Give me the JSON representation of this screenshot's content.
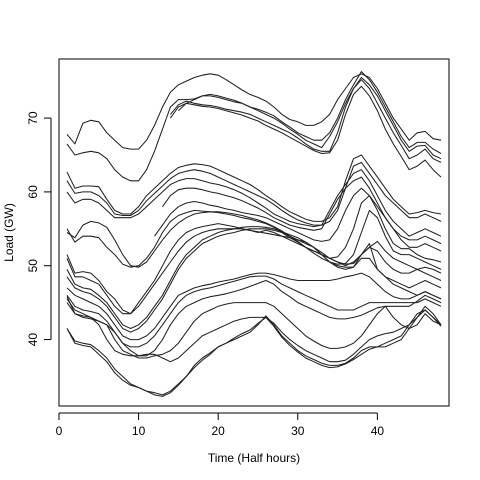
{
  "chart_data": {
    "type": "line",
    "xlabel": "Time (Half hours)",
    "ylabel": "Load (GW)",
    "xlim": [
      0,
      49
    ],
    "ylim": [
      31,
      78
    ],
    "xticks": [
      0,
      10,
      20,
      30,
      40
    ],
    "yticks": [
      40,
      50,
      60,
      70
    ],
    "grid": false,
    "x": [
      1,
      2,
      3,
      4,
      5,
      6,
      7,
      8,
      9,
      10,
      11,
      12,
      13,
      14,
      15,
      16,
      17,
      18,
      19,
      20,
      21,
      22,
      23,
      24,
      25,
      26,
      27,
      28,
      29,
      30,
      31,
      32,
      33,
      34,
      35,
      36,
      37,
      38,
      39,
      40,
      41,
      42,
      43,
      44,
      45,
      46,
      47,
      48
    ],
    "series": [
      {
        "values": [
          67.8,
          66.5,
          69.3,
          69.7,
          69.5,
          68.0,
          67.0,
          66.0,
          65.8,
          65.8,
          67.0,
          69.0,
          71.5,
          73.5,
          74.5,
          75.0,
          75.5,
          75.8,
          76.0,
          75.8,
          75.2,
          74.5,
          73.8,
          73.2,
          72.8,
          72.3,
          71.5,
          70.5,
          69.8,
          69.5,
          69.0,
          69.0,
          69.5,
          70.5,
          72.5,
          74.0,
          75.5,
          76.0,
          75.5,
          74.0,
          72.0,
          70.0,
          68.5,
          67.0,
          68.0,
          68.2,
          67.2,
          67.0
        ]
      },
      {
        "values": [
          66.5,
          65.0,
          65.3,
          65.5,
          65.3,
          64.5,
          63.0,
          62.0,
          61.5,
          61.5,
          63.0,
          65.5,
          68.5,
          71.5,
          72.5,
          72.5,
          72.6,
          73.0,
          73.0,
          72.8,
          72.5,
          72.2,
          72.0,
          71.5,
          71.2,
          70.8,
          70.3,
          69.5,
          68.8,
          68.0,
          67.5,
          67.0,
          67.0,
          68.0,
          70.0,
          72.5,
          74.5,
          76.3,
          75.2,
          73.5,
          71.5,
          69.5,
          67.5,
          66.0,
          66.7,
          66.7,
          65.8,
          65.2
        ]
      },
      {
        "values": [
          null,
          null,
          null,
          null,
          null,
          null,
          null,
          null,
          null,
          null,
          null,
          null,
          null,
          null,
          71.0,
          72.0,
          72.5,
          73.0,
          73.2,
          73.0,
          72.7,
          72.4,
          72.0,
          71.5,
          71.0,
          70.5,
          70.0,
          69.3,
          68.5,
          67.8,
          67.0,
          66.5,
          66.0,
          67.5,
          69.5,
          72.0,
          74.0,
          75.5,
          74.5,
          73.0,
          71.0,
          69.0,
          67.0,
          65.5,
          66.2,
          66.3,
          65.0,
          64.5
        ]
      },
      {
        "values": [
          null,
          null,
          null,
          null,
          null,
          null,
          null,
          null,
          null,
          null,
          null,
          null,
          null,
          70.5,
          71.8,
          72.3,
          72.0,
          71.8,
          71.7,
          71.5,
          71.2,
          71.0,
          70.8,
          70.5,
          70.0,
          69.5,
          69.0,
          68.5,
          68.0,
          67.3,
          66.5,
          65.8,
          65.5,
          65.5,
          68.0,
          71.5,
          74.0,
          75.2,
          74.0,
          72.0,
          70.0,
          68.0,
          66.3,
          64.5,
          65.0,
          65.8,
          64.5,
          64.0
        ]
      },
      {
        "values": [
          null,
          null,
          null,
          null,
          null,
          null,
          null,
          null,
          null,
          null,
          null,
          null,
          null,
          70.0,
          71.5,
          72.0,
          71.8,
          71.6,
          71.5,
          71.3,
          71.0,
          70.7,
          70.4,
          70.0,
          69.6,
          69.0,
          68.5,
          68.0,
          67.4,
          66.8,
          66.2,
          65.6,
          65.2,
          65.3,
          67.0,
          70.5,
          73.2,
          74.3,
          73.0,
          71.0,
          68.5,
          66.5,
          64.8,
          63.0,
          63.5,
          64.3,
          63.0,
          62.0
        ]
      },
      {
        "values": [
          62.7,
          60.5,
          60.8,
          60.8,
          60.7,
          59.0,
          57.5,
          57.0,
          57.0,
          58.0,
          59.5,
          60.5,
          61.5,
          62.5,
          63.3,
          63.6,
          63.8,
          63.7,
          63.5,
          63.0,
          62.5,
          62.0,
          61.5,
          61.0,
          60.3,
          59.5,
          58.8,
          58.0,
          57.3,
          56.8,
          56.3,
          56.0,
          56.0,
          56.5,
          58.0,
          61.5,
          64.5,
          65.0,
          63.5,
          62.0,
          60.5,
          59.0,
          58.0,
          57.0,
          57.2,
          57.5,
          57.2,
          57.0
        ]
      },
      {
        "values": [
          61.5,
          59.8,
          60.0,
          60.0,
          59.5,
          58.5,
          57.0,
          56.8,
          56.8,
          57.5,
          58.8,
          59.8,
          60.8,
          61.8,
          62.5,
          62.8,
          63.0,
          62.8,
          62.5,
          62.0,
          61.5,
          61.0,
          60.5,
          60.0,
          59.5,
          59.0,
          58.3,
          57.5,
          56.8,
          56.2,
          55.8,
          55.5,
          55.5,
          56.0,
          57.5,
          60.5,
          63.5,
          64.0,
          62.5,
          61.0,
          59.5,
          58.5,
          57.5,
          56.5,
          56.5,
          57.0,
          56.5,
          56.0
        ]
      },
      {
        "values": [
          60.0,
          58.5,
          59.0,
          59.0,
          58.5,
          57.5,
          56.5,
          56.5,
          56.5,
          57.0,
          58.0,
          59.0,
          60.0,
          61.0,
          61.5,
          61.8,
          61.8,
          61.5,
          61.2,
          61.0,
          60.7,
          60.3,
          59.8,
          59.2,
          58.5,
          57.8,
          57.0,
          56.5,
          56.0,
          55.7,
          55.5,
          55.3,
          55.5,
          57.5,
          59.5,
          61.0,
          62.5,
          63.0,
          61.5,
          59.5,
          57.5,
          56.0,
          55.0,
          54.0,
          54.5,
          55.0,
          54.5,
          54.0
        ]
      },
      {
        "values": [
          null,
          null,
          null,
          null,
          null,
          null,
          null,
          null,
          null,
          null,
          null,
          null,
          58.0,
          59.5,
          60.3,
          60.5,
          60.5,
          60.3,
          60.0,
          59.8,
          59.5,
          59.2,
          58.8,
          58.3,
          57.8,
          57.2,
          56.5,
          56.0,
          55.5,
          55.2,
          55.0,
          54.8,
          55.0,
          57.0,
          59.0,
          60.5,
          61.5,
          62.0,
          60.5,
          58.5,
          56.5,
          55.0,
          54.0,
          53.5,
          53.5,
          54.0,
          53.5,
          53.0
        ]
      },
      {
        "values": [
          null,
          null,
          null,
          null,
          null,
          null,
          null,
          null,
          null,
          null,
          null,
          54.0,
          55.5,
          57.0,
          58.0,
          58.5,
          58.7,
          58.5,
          58.2,
          58.0,
          57.7,
          57.5,
          57.2,
          57.0,
          56.8,
          56.5,
          56.0,
          55.5,
          55.0,
          54.5,
          54.0,
          53.5,
          53.3,
          53.5,
          55.0,
          57.5,
          59.5,
          60.5,
          59.5,
          58.0,
          56.5,
          55.0,
          53.5,
          52.5,
          52.5,
          53.0,
          52.5,
          52.0
        ]
      },
      {
        "values": [
          55.0,
          53.2,
          54.0,
          54.0,
          53.8,
          52.5,
          51.5,
          50.2,
          49.8,
          50.0,
          51.0,
          52.5,
          54.5,
          56.0,
          56.8,
          57.2,
          57.5,
          57.4,
          57.3,
          57.2,
          57.0,
          56.8,
          56.5,
          56.3,
          56.0,
          55.7,
          55.2,
          54.5,
          53.8,
          53.2,
          52.5,
          52.0,
          51.5,
          51.0,
          51.2,
          52.5,
          55.0,
          58.5,
          59.5,
          57.5,
          55.0,
          53.0,
          52.3,
          52.3,
          51.5,
          51.0,
          50.8,
          50.5
        ]
      },
      {
        "values": [
          54.5,
          53.8,
          55.5,
          56.0,
          55.8,
          55.2,
          53.5,
          51.5,
          50.0,
          49.8,
          50.5,
          52.0,
          53.5,
          54.8,
          55.8,
          56.5,
          57.0,
          57.2,
          57.3,
          57.3,
          57.2,
          57.0,
          56.8,
          56.5,
          56.2,
          55.8,
          55.3,
          54.7,
          54.0,
          53.3,
          52.5,
          51.7,
          51.0,
          50.5,
          50.2,
          50.3,
          51.5,
          54.5,
          57.5,
          56.5,
          54.0,
          52.0,
          51.5,
          51.5,
          51.0,
          50.5,
          50.0,
          49.5
        ]
      },
      {
        "values": [
          51.5,
          49.0,
          49.2,
          49.0,
          48.0,
          46.5,
          45.5,
          44.0,
          43.5,
          44.5,
          46.0,
          47.5,
          49.0,
          50.5,
          52.0,
          53.2,
          54.0,
          54.5,
          54.8,
          55.0,
          55.0,
          55.0,
          55.0,
          54.8,
          54.6,
          54.4,
          54.2,
          54.0,
          53.8,
          53.5,
          53.2,
          52.5,
          51.8,
          51.0,
          50.5,
          50.2,
          50.3,
          51.5,
          52.5,
          53.3,
          52.0,
          51.0,
          50.5,
          50.0,
          49.5,
          49.0,
          48.5,
          48.0
        ]
      },
      {
        "values": [
          51.0,
          48.5,
          48.5,
          48.0,
          47.5,
          46.0,
          44.5,
          43.5,
          43.5,
          45.0,
          46.5,
          48.0,
          50.0,
          52.0,
          53.5,
          54.5,
          55.0,
          55.3,
          55.5,
          55.7,
          55.5,
          55.3,
          55.0,
          54.8,
          54.5,
          54.8,
          54.5,
          54.0,
          53.5,
          53.0,
          52.5,
          52.0,
          51.5,
          51.0,
          50.5,
          50.0,
          50.5,
          51.5,
          53.0,
          49.5,
          48.5,
          48.0,
          47.5,
          47.0,
          47.5,
          48.0,
          47.5,
          47.0
        ]
      },
      {
        "values": [
          49.5,
          47.5,
          47.0,
          46.8,
          46.0,
          45.0,
          43.5,
          42.0,
          41.5,
          42.0,
          43.0,
          44.5,
          46.0,
          48.0,
          50.0,
          51.5,
          52.5,
          53.5,
          54.0,
          54.5,
          54.8,
          55.0,
          55.2,
          55.3,
          55.3,
          55.2,
          55.0,
          54.6,
          54.2,
          53.8,
          53.2,
          52.5,
          51.5,
          50.5,
          49.8,
          49.5,
          49.8,
          51.5,
          52.5,
          52.0,
          50.5,
          49.5,
          49.0,
          49.0,
          49.5,
          49.8,
          49.5,
          49.0
        ]
      },
      {
        "values": [
          48.5,
          47.0,
          46.5,
          46.2,
          45.5,
          44.5,
          43.0,
          41.5,
          41.0,
          41.5,
          42.5,
          44.0,
          45.5,
          47.5,
          49.5,
          51.0,
          52.0,
          53.0,
          53.5,
          54.0,
          54.3,
          54.5,
          54.8,
          55.0,
          55.0,
          55.0,
          54.8,
          54.5,
          54.0,
          53.5,
          53.0,
          52.5,
          51.5,
          50.5,
          50.0,
          49.8,
          49.8,
          51.0,
          51.0,
          49.5,
          48.5,
          47.5,
          47.0,
          46.5,
          46.0,
          46.5,
          46.0,
          45.5
        ]
      },
      {
        "values": [
          47.0,
          46.0,
          45.5,
          45.0,
          44.5,
          43.5,
          42.0,
          40.5,
          40.0,
          40.0,
          40.5,
          41.5,
          43.0,
          44.5,
          46.0,
          46.5,
          47.0,
          47.3,
          47.5,
          47.8,
          48.0,
          48.2,
          48.5,
          48.8,
          49.0,
          49.0,
          48.8,
          48.5,
          48.2,
          48.0,
          48.0,
          48.0,
          48.0,
          48.0,
          48.2,
          48.5,
          48.7,
          49.0,
          48.5,
          47.5,
          46.5,
          45.8,
          45.5,
          45.5,
          46.0,
          46.5,
          46.0,
          45.5
        ]
      },
      {
        "values": [
          46.0,
          44.5,
          44.0,
          43.8,
          43.5,
          42.5,
          41.0,
          39.5,
          39.0,
          39.0,
          39.5,
          40.5,
          42.0,
          43.5,
          45.0,
          46.0,
          46.5,
          46.8,
          47.0,
          47.3,
          47.6,
          47.9,
          48.2,
          48.5,
          48.6,
          48.6,
          48.2,
          47.5,
          47.0,
          46.5,
          46.0,
          45.5,
          45.0,
          44.5,
          44.0,
          44.0,
          44.0,
          44.5,
          45.0,
          45.0,
          45.0,
          45.0,
          45.0,
          45.0,
          45.0,
          45.5,
          45.0,
          44.5
        ]
      },
      {
        "values": [
          45.5,
          44.0,
          43.5,
          43.0,
          42.5,
          42.0,
          41.0,
          39.5,
          38.5,
          37.8,
          37.8,
          38.5,
          40.0,
          42.0,
          43.5,
          44.5,
          45.0,
          45.5,
          45.8,
          46.0,
          46.2,
          46.5,
          46.8,
          47.2,
          47.6,
          48.0,
          47.5,
          46.5,
          45.8,
          45.0,
          44.5,
          44.0,
          43.5,
          43.0,
          42.8,
          42.8,
          43.0,
          43.3,
          43.8,
          44.3,
          44.5,
          44.5,
          44.5,
          44.5,
          45.2,
          46.0,
          45.5,
          45.0
        ]
      },
      {
        "values": [
          45.8,
          43.5,
          43.0,
          42.8,
          42.5,
          42.0,
          40.0,
          38.5,
          38.0,
          37.5,
          37.5,
          37.8,
          38.0,
          38.5,
          39.5,
          41.0,
          42.5,
          43.5,
          44.0,
          44.5,
          44.8,
          45.0,
          45.0,
          45.0,
          45.0,
          45.0,
          44.5,
          43.5,
          42.5,
          41.5,
          40.5,
          39.8,
          39.2,
          38.8,
          38.8,
          39.0,
          39.5,
          40.5,
          42.0,
          43.5,
          44.5,
          43.0,
          42.0,
          41.5,
          42.0,
          43.5,
          42.5,
          42.0
        ]
      },
      {
        "values": [
          45.0,
          43.5,
          43.2,
          43.0,
          42.0,
          40.0,
          38.5,
          38.0,
          37.8,
          37.8,
          38.0,
          38.0,
          37.5,
          37.0,
          37.5,
          38.5,
          39.5,
          40.5,
          41.0,
          41.5,
          42.0,
          42.5,
          42.8,
          43.0,
          43.0,
          43.0,
          42.2,
          41.0,
          40.0,
          39.2,
          38.5,
          38.0,
          37.5,
          37.0,
          37.0,
          37.2,
          38.0,
          39.0,
          40.0,
          40.5,
          40.8,
          41.0,
          41.5,
          42.0,
          43.0,
          44.0,
          43.0,
          42.0
        ]
      },
      {
        "values": [
          41.5,
          39.8,
          39.5,
          39.3,
          38.5,
          37.5,
          36.0,
          35.0,
          34.0,
          33.5,
          33.0,
          32.8,
          32.5,
          33.0,
          34.0,
          35.0,
          36.2,
          37.2,
          38.0,
          39.0,
          39.5,
          40.0,
          40.5,
          41.0,
          42.0,
          43.2,
          42.0,
          40.5,
          39.5,
          38.5,
          37.8,
          37.3,
          36.8,
          36.5,
          36.5,
          36.8,
          37.5,
          38.5,
          39.0,
          39.0,
          39.0,
          39.5,
          40.0,
          41.5,
          43.0,
          44.5,
          43.5,
          42.0
        ]
      },
      {
        "values": [
          41.5,
          39.5,
          39.2,
          39.0,
          38.0,
          37.0,
          35.5,
          34.5,
          33.8,
          33.5,
          33.0,
          32.5,
          32.3,
          32.8,
          33.8,
          35.0,
          36.5,
          37.5,
          38.2,
          39.0,
          39.5,
          40.2,
          40.8,
          41.3,
          42.2,
          43.0,
          41.8,
          40.3,
          39.2,
          38.3,
          37.5,
          37.0,
          36.5,
          36.2,
          36.3,
          36.7,
          37.3,
          38.0,
          38.7,
          39.0,
          39.5,
          40.0,
          40.5,
          42.0,
          43.5,
          44.0,
          43.0,
          41.8
        ]
      }
    ]
  }
}
